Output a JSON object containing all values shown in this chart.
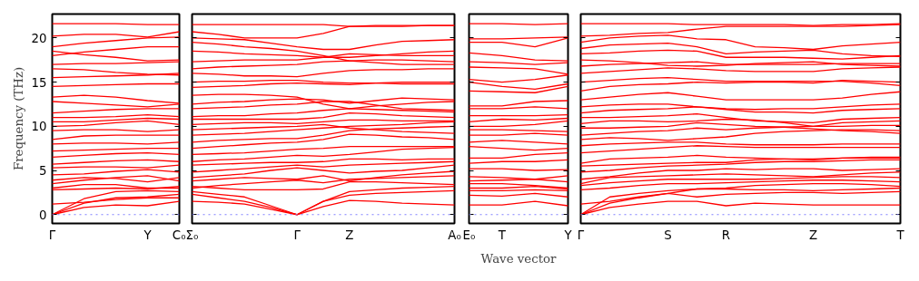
{
  "chart_data": [
    {
      "type": "line",
      "ylabel": "Frequency (THz)",
      "grid": false,
      "ylim": [
        -1,
        22.7
      ],
      "yticks": [
        0,
        5,
        10,
        15,
        20
      ],
      "categories": [
        "Γ",
        null,
        null,
        "Y",
        "C₀"
      ],
      "ref_lines": [
        {
          "axis": "y",
          "value": 0,
          "color": "#8080ff",
          "line_style": "dotted"
        }
      ],
      "series": [
        {
          "color": "#ff0000",
          "values": [
            0,
            0.8,
            1.1,
            1.0,
            1.5
          ]
        },
        {
          "color": "#ff0000",
          "values": [
            0,
            1.3,
            1.9,
            2.0,
            2.3
          ]
        },
        {
          "color": "#ff0000",
          "values": [
            0,
            1.8,
            2.6,
            2.7,
            2.6
          ]
        },
        {
          "color": "#ff0000",
          "values": [
            1.2,
            1.4,
            1.7,
            1.9,
            1.9
          ]
        },
        {
          "color": "#ff0000",
          "values": [
            2.8,
            2.9,
            3.0,
            2.9,
            3.2
          ]
        },
        {
          "color": "#ff0000",
          "values": [
            3.0,
            3.4,
            3.4,
            3.0,
            3.0
          ]
        },
        {
          "color": "#ff0000",
          "values": [
            3.5,
            3.9,
            4.2,
            4.4,
            3.8
          ]
        },
        {
          "color": "#ff0000",
          "values": [
            3.9,
            4.2,
            4.1,
            3.7,
            4.2
          ]
        },
        {
          "color": "#ff0000",
          "values": [
            4.5,
            4.6,
            4.9,
            5.1,
            4.8
          ]
        },
        {
          "color": "#ff0000",
          "values": [
            5.3,
            5.4,
            5.4,
            5.3,
            5.6
          ]
        },
        {
          "color": "#ff0000",
          "values": [
            5.7,
            5.9,
            6.1,
            6.2,
            6.0
          ]
        },
        {
          "color": "#ff0000",
          "values": [
            6.5,
            6.7,
            6.9,
            7.0,
            6.8
          ]
        },
        {
          "color": "#ff0000",
          "values": [
            7.2,
            7.3,
            7.4,
            7.5,
            7.5
          ]
        },
        {
          "color": "#ff0000",
          "values": [
            8.0,
            8.1,
            8.1,
            8.0,
            8.2
          ]
        },
        {
          "color": "#ff0000",
          "values": [
            8.5,
            8.9,
            9.0,
            9.0,
            9.0
          ]
        },
        {
          "color": "#ff0000",
          "values": [
            9.5,
            9.6,
            9.6,
            9.4,
            9.6
          ]
        },
        {
          "color": "#ff0000",
          "values": [
            10.0,
            10.1,
            10.4,
            10.6,
            10.2
          ]
        },
        {
          "color": "#ff0000",
          "values": [
            10.5,
            10.5,
            10.7,
            10.9,
            10.8
          ]
        },
        {
          "color": "#ff0000",
          "values": [
            11.0,
            11.0,
            11.1,
            11.3,
            11.1
          ]
        },
        {
          "color": "#ff0000",
          "values": [
            11.5,
            11.7,
            11.9,
            12.0,
            12.0
          ]
        },
        {
          "color": "#ff0000",
          "values": [
            12.8,
            12.6,
            12.4,
            12.2,
            12.5
          ]
        },
        {
          "color": "#ff0000",
          "values": [
            13.3,
            13.5,
            13.3,
            12.9,
            12.6
          ]
        },
        {
          "color": "#ff0000",
          "values": [
            14.5,
            14.6,
            14.7,
            14.8,
            14.8
          ]
        },
        {
          "color": "#ff0000",
          "values": [
            15.5,
            15.6,
            15.7,
            15.8,
            16.0
          ]
        },
        {
          "color": "#ff0000",
          "values": [
            16.5,
            16.4,
            16.1,
            15.9,
            15.8
          ]
        },
        {
          "color": "#ff0000",
          "values": [
            17.0,
            17.1,
            17.1,
            17.2,
            17.3
          ]
        },
        {
          "color": "#ff0000",
          "values": [
            18.5,
            18.1,
            17.8,
            17.4,
            17.5
          ]
        },
        {
          "color": "#ff0000",
          "values": [
            18.0,
            18.4,
            18.7,
            19.0,
            19.0
          ]
        },
        {
          "color": "#ff0000",
          "values": [
            19.0,
            19.4,
            19.7,
            20.0,
            20.1
          ]
        },
        {
          "color": "#ff0000",
          "values": [
            20.2,
            20.4,
            20.4,
            20.1,
            20.7
          ]
        },
        {
          "color": "#ff0000",
          "values": [
            21.6,
            21.6,
            21.6,
            21.5,
            21.5
          ]
        }
      ]
    },
    {
      "type": "line",
      "tick_labels": "x",
      "grid": false,
      "ylim": [
        -1,
        22.7
      ],
      "yticks": [
        0,
        5,
        10,
        15,
        20
      ],
      "categories": [
        "Σ₀",
        null,
        null,
        null,
        "Γ",
        null,
        "Z",
        null,
        null,
        null,
        "A₀"
      ],
      "ref_lines": [
        {
          "axis": "y",
          "value": 0,
          "color": "#8080ff",
          "line_style": "dotted"
        }
      ],
      "series": [
        {
          "color": "#ff0000",
          "values": [
            1.5,
            1.4,
            1.2,
            0.6,
            0,
            0.9,
            1.6,
            1.5,
            1.3,
            1.2,
            1.1
          ]
        },
        {
          "color": "#ff0000",
          "values": [
            2.3,
            1.9,
            1.5,
            0.8,
            0,
            1.5,
            2.2,
            2.4,
            2.5,
            2.6,
            2.7
          ]
        },
        {
          "color": "#ff0000",
          "values": [
            2.6,
            2.3,
            2.0,
            1.0,
            0,
            1.5,
            2.6,
            2.8,
            3.0,
            3.1,
            3.2
          ]
        },
        {
          "color": "#ff0000",
          "values": [
            3.2,
            3.0,
            2.8,
            2.8,
            2.8,
            2.9,
            3.7,
            3.7,
            3.6,
            3.5,
            3.4
          ]
        },
        {
          "color": "#ff0000",
          "values": [
            3.0,
            3.3,
            3.5,
            3.7,
            3.9,
            3.6,
            4.0,
            4.1,
            4.2,
            4.3,
            4.4
          ]
        },
        {
          "color": "#ff0000",
          "values": [
            3.8,
            4.0,
            4.2,
            4.1,
            4.0,
            4.4,
            3.8,
            4.2,
            4.5,
            4.7,
            4.9
          ]
        },
        {
          "color": "#ff0000",
          "values": [
            4.2,
            4.4,
            4.6,
            5.0,
            5.3,
            5.0,
            4.7,
            4.9,
            5.0,
            5.3,
            5.6
          ]
        },
        {
          "color": "#ff0000",
          "values": [
            4.8,
            5.0,
            5.2,
            5.4,
            5.6,
            5.4,
            5.6,
            5.7,
            5.8,
            5.9,
            6.0
          ]
        },
        {
          "color": "#ff0000",
          "values": [
            5.6,
            5.7,
            5.8,
            5.9,
            5.9,
            6.0,
            6.3,
            6.3,
            6.2,
            6.3,
            6.3
          ]
        },
        {
          "color": "#ff0000",
          "values": [
            6.0,
            6.2,
            6.3,
            6.5,
            6.7,
            6.6,
            6.8,
            7.1,
            7.4,
            7.5,
            7.6
          ]
        },
        {
          "color": "#ff0000",
          "values": [
            6.8,
            6.9,
            7.0,
            7.2,
            7.4,
            7.5,
            7.7,
            7.7,
            7.7,
            7.7,
            7.7
          ]
        },
        {
          "color": "#ff0000",
          "values": [
            7.5,
            7.7,
            7.9,
            8.1,
            8.2,
            8.5,
            9.1,
            9.0,
            8.8,
            8.7,
            8.5
          ]
        },
        {
          "color": "#ff0000",
          "values": [
            8.2,
            8.4,
            8.5,
            8.6,
            8.6,
            9.0,
            9.5,
            9.7,
            9.8,
            9.9,
            10.0
          ]
        },
        {
          "color": "#ff0000",
          "values": [
            9.0,
            9.1,
            9.2,
            9.4,
            9.6,
            9.8,
            10.0,
            10.1,
            10.2,
            10.4,
            10.5
          ]
        },
        {
          "color": "#ff0000",
          "values": [
            9.6,
            9.7,
            9.8,
            9.9,
            10.0,
            10.2,
            9.8,
            9.6,
            9.4,
            9.3,
            9.2
          ]
        },
        {
          "color": "#ff0000",
          "values": [
            10.2,
            10.3,
            10.4,
            10.4,
            10.3,
            10.5,
            10.7,
            10.7,
            10.6,
            10.6,
            10.6
          ]
        },
        {
          "color": "#ff0000",
          "values": [
            10.8,
            10.8,
            10.8,
            10.8,
            10.8,
            11.0,
            11.5,
            11.4,
            11.2,
            11.1,
            11.0
          ]
        },
        {
          "color": "#ff0000",
          "values": [
            11.1,
            11.2,
            11.2,
            11.4,
            11.5,
            11.8,
            12.0,
            11.9,
            11.8,
            11.7,
            11.6
          ]
        },
        {
          "color": "#ff0000",
          "values": [
            12.0,
            12.1,
            12.2,
            12.4,
            12.5,
            12.8,
            12.8,
            12.4,
            12.0,
            11.9,
            11.8
          ]
        },
        {
          "color": "#ff0000",
          "values": [
            12.5,
            12.7,
            12.8,
            13.0,
            13.1,
            13.0,
            12.6,
            12.9,
            13.2,
            13.1,
            13.0
          ]
        },
        {
          "color": "#ff0000",
          "values": [
            13.5,
            13.6,
            13.6,
            13.5,
            13.3,
            12.5,
            12.0,
            12.3,
            12.5,
            12.7,
            12.8
          ]
        },
        {
          "color": "#ff0000",
          "values": [
            14.4,
            14.5,
            14.6,
            14.8,
            14.9,
            14.8,
            14.7,
            14.9,
            15.0,
            15.0,
            15.0
          ]
        },
        {
          "color": "#ff0000",
          "values": [
            15.0,
            15.1,
            15.1,
            15.2,
            15.2,
            15.0,
            14.9,
            14.9,
            14.8,
            14.8,
            14.8
          ]
        },
        {
          "color": "#ff0000",
          "values": [
            16.0,
            15.9,
            15.7,
            15.7,
            15.6,
            16.0,
            16.3,
            16.4,
            16.4,
            16.5,
            16.5
          ]
        },
        {
          "color": "#ff0000",
          "values": [
            16.5,
            16.7,
            16.8,
            16.9,
            17.0,
            17.3,
            17.4,
            17.2,
            17.0,
            17.0,
            17.0
          ]
        },
        {
          "color": "#ff0000",
          "values": [
            17.3,
            17.4,
            17.5,
            17.5,
            17.5,
            17.8,
            18.2,
            18.1,
            18.0,
            18.0,
            18.0
          ]
        },
        {
          "color": "#ff0000",
          "values": [
            18.5,
            18.4,
            18.2,
            18.1,
            18.0,
            17.8,
            17.8,
            18.0,
            18.2,
            18.4,
            18.5
          ]
        },
        {
          "color": "#ff0000",
          "values": [
            19.5,
            19.3,
            19.0,
            18.8,
            18.5,
            18.0,
            17.4,
            17.5,
            17.5,
            17.4,
            17.3
          ]
        },
        {
          "color": "#ff0000",
          "values": [
            20.0,
            19.9,
            19.8,
            19.4,
            19.0,
            18.7,
            18.7,
            19.2,
            19.6,
            19.7,
            19.8
          ]
        },
        {
          "color": "#ff0000",
          "values": [
            20.7,
            20.4,
            20.0,
            20.0,
            20.0,
            20.5,
            21.3,
            21.3,
            21.3,
            21.4,
            21.4
          ]
        },
        {
          "color": "#ff0000",
          "values": [
            21.5,
            21.5,
            21.5,
            21.5,
            21.5,
            21.5,
            21.3,
            21.4,
            21.4,
            21.4,
            21.4
          ]
        }
      ]
    },
    {
      "type": "line",
      "tick_labels": "x",
      "xlabel": "Wave vector",
      "grid": false,
      "ylim": [
        -1,
        22.7
      ],
      "yticks": [
        0,
        5,
        10,
        15,
        20
      ],
      "categories": [
        "E₀",
        "T",
        null,
        "Y"
      ],
      "ref_lines": [
        {
          "axis": "y",
          "value": 0,
          "color": "#8080ff",
          "line_style": "dotted"
        }
      ],
      "series": [
        {
          "color": "#ff0000",
          "values": [
            1.1,
            1.1,
            1.5,
            1.0
          ]
        },
        {
          "color": "#ff0000",
          "values": [
            2.2,
            2.1,
            2.4,
            2.0
          ]
        },
        {
          "color": "#ff0000",
          "values": [
            2.7,
            2.7,
            2.8,
            2.7
          ]
        },
        {
          "color": "#ff0000",
          "values": [
            3.0,
            3.0,
            3.2,
            2.9
          ]
        },
        {
          "color": "#ff0000",
          "values": [
            3.5,
            3.5,
            3.3,
            3.0
          ]
        },
        {
          "color": "#ff0000",
          "values": [
            3.8,
            3.9,
            4.0,
            4.4
          ]
        },
        {
          "color": "#ff0000",
          "values": [
            4.3,
            4.2,
            4.0,
            3.7
          ]
        },
        {
          "color": "#ff0000",
          "values": [
            5.2,
            5.2,
            5.0,
            5.1
          ]
        },
        {
          "color": "#ff0000",
          "values": [
            5.8,
            6.0,
            6.0,
            6.2
          ]
        },
        {
          "color": "#ff0000",
          "values": [
            6.4,
            6.4,
            6.8,
            7.0
          ]
        },
        {
          "color": "#ff0000",
          "values": [
            7.7,
            7.5,
            7.3,
            7.5
          ]
        },
        {
          "color": "#ff0000",
          "values": [
            8.2,
            8.4,
            8.2,
            8.0
          ]
        },
        {
          "color": "#ff0000",
          "values": [
            9.0,
            9.0,
            9.2,
            9.0
          ]
        },
        {
          "color": "#ff0000",
          "values": [
            9.6,
            9.6,
            9.5,
            9.4
          ]
        },
        {
          "color": "#ff0000",
          "values": [
            10.0,
            10.0,
            10.2,
            10.6
          ]
        },
        {
          "color": "#ff0000",
          "values": [
            10.5,
            10.8,
            10.7,
            10.9
          ]
        },
        {
          "color": "#ff0000",
          "values": [
            11.2,
            11.2,
            11.2,
            11.3
          ]
        },
        {
          "color": "#ff0000",
          "values": [
            12.0,
            12.0,
            12.2,
            12.0
          ]
        },
        {
          "color": "#ff0000",
          "values": [
            12.3,
            12.3,
            12.8,
            12.9
          ]
        },
        {
          "color": "#ff0000",
          "values": [
            14.0,
            13.9,
            13.8,
            14.5
          ]
        },
        {
          "color": "#ff0000",
          "values": [
            15.0,
            14.5,
            14.2,
            14.8
          ]
        },
        {
          "color": "#ff0000",
          "values": [
            15.3,
            15.0,
            15.3,
            15.8
          ]
        },
        {
          "color": "#ff0000",
          "values": [
            16.7,
            16.6,
            16.5,
            15.9
          ]
        },
        {
          "color": "#ff0000",
          "values": [
            17.3,
            17.2,
            17.0,
            17.2
          ]
        },
        {
          "color": "#ff0000",
          "values": [
            18.3,
            18.0,
            17.5,
            17.4
          ]
        },
        {
          "color": "#ff0000",
          "values": [
            19.5,
            19.5,
            19.0,
            20.0
          ]
        },
        {
          "color": "#ff0000",
          "values": [
            19.9,
            19.9,
            20.0,
            20.1
          ]
        },
        {
          "color": "#ff0000",
          "values": [
            21.6,
            21.6,
            21.5,
            21.6
          ]
        }
      ]
    },
    {
      "type": "line",
      "tick_labels": "x",
      "grid": false,
      "ylim": [
        -1,
        22.7
      ],
      "yticks": [
        0,
        5,
        10,
        15,
        20
      ],
      "categories": [
        "Γ",
        null,
        null,
        "S",
        null,
        "R",
        null,
        null,
        "Z",
        null,
        null,
        "T"
      ],
      "ref_lines": [
        {
          "axis": "y",
          "value": 0,
          "color": "#8080ff",
          "line_style": "dotted"
        }
      ],
      "series": [
        {
          "color": "#ff0000",
          "values": [
            0,
            0.8,
            1.2,
            1.5,
            1.5,
            1.0,
            1.3,
            1.2,
            1.1,
            1.1,
            1.1,
            1.1
          ]
        },
        {
          "color": "#ff0000",
          "values": [
            0,
            1.3,
            1.9,
            2.4,
            2.0,
            2.3,
            2.4,
            2.5,
            2.5,
            2.4,
            2.5,
            2.6
          ]
        },
        {
          "color": "#ff0000",
          "values": [
            0,
            2.0,
            2.4,
            2.7,
            2.9,
            2.9,
            2.8,
            2.8,
            2.7,
            2.8,
            2.9,
            3.0
          ]
        },
        {
          "color": "#ff0000",
          "values": [
            1.2,
            1.5,
            2.0,
            2.4,
            2.9,
            3.0,
            3.3,
            3.4,
            3.5,
            3.5,
            3.4,
            3.2
          ]
        },
        {
          "color": "#ff0000",
          "values": [
            2.8,
            3.0,
            3.3,
            3.5,
            3.5,
            3.6,
            3.7,
            3.8,
            3.9,
            3.9,
            3.8,
            3.7
          ]
        },
        {
          "color": "#ff0000",
          "values": [
            3.3,
            3.6,
            3.8,
            4.0,
            4.0,
            4.0,
            4.0,
            4.1,
            4.2,
            4.3,
            4.3,
            4.2
          ]
        },
        {
          "color": "#ff0000",
          "values": [
            3.5,
            4.2,
            4.3,
            4.4,
            4.5,
            4.6,
            4.5,
            4.4,
            4.3,
            4.5,
            4.7,
            4.8
          ]
        },
        {
          "color": "#ff0000",
          "values": [
            4.0,
            4.3,
            4.7,
            5.0,
            5.0,
            5.2,
            5.1,
            5.2,
            5.2,
            5.0,
            5.1,
            5.2
          ]
        },
        {
          "color": "#ff0000",
          "values": [
            4.8,
            5.0,
            5.3,
            5.5,
            5.6,
            5.7,
            5.9,
            6.0,
            6.0,
            6.1,
            6.2,
            6.2
          ]
        },
        {
          "color": "#ff0000",
          "values": [
            5.5,
            5.6,
            5.7,
            5.8,
            5.9,
            5.9,
            6.2,
            6.3,
            6.3,
            6.4,
            6.4,
            6.4
          ]
        },
        {
          "color": "#ff0000",
          "values": [
            5.8,
            6.3,
            6.4,
            6.5,
            6.7,
            6.5,
            6.4,
            6.3,
            6.2,
            6.4,
            6.5,
            6.5
          ]
        },
        {
          "color": "#ff0000",
          "values": [
            7.0,
            7.2,
            7.4,
            7.6,
            7.8,
            7.7,
            7.6,
            7.6,
            7.6,
            7.6,
            7.6,
            7.6
          ]
        },
        {
          "color": "#ff0000",
          "values": [
            7.8,
            8.0,
            8.1,
            8.2,
            8.2,
            8.0,
            7.9,
            7.9,
            7.9,
            8.0,
            8.0,
            8.0
          ]
        },
        {
          "color": "#ff0000",
          "values": [
            8.5,
            8.7,
            8.6,
            8.4,
            8.6,
            8.8,
            9.2,
            9.4,
            9.5,
            9.6,
            9.6,
            9.5
          ]
        },
        {
          "color": "#ff0000",
          "values": [
            9.0,
            9.2,
            9.4,
            9.5,
            9.8,
            9.6,
            9.8,
            9.9,
            10.0,
            10.0,
            10.1,
            10.1
          ]
        },
        {
          "color": "#ff0000",
          "values": [
            9.8,
            9.8,
            9.9,
            10.0,
            10.4,
            10.2,
            10.0,
            9.9,
            9.7,
            9.5,
            9.4,
            9.2
          ]
        },
        {
          "color": "#ff0000",
          "values": [
            10.3,
            10.6,
            10.6,
            10.5,
            10.6,
            10.8,
            10.7,
            10.4,
            10.0,
            10.4,
            10.5,
            10.6
          ]
        },
        {
          "color": "#ff0000",
          "values": [
            11.0,
            11.0,
            11.1,
            11.2,
            11.4,
            11.0,
            10.6,
            10.5,
            10.4,
            10.8,
            10.9,
            11.0
          ]
        },
        {
          "color": "#ff0000",
          "values": [
            11.5,
            11.8,
            11.9,
            12.0,
            12.2,
            11.9,
            11.6,
            11.6,
            11.5,
            11.8,
            11.9,
            12.0
          ]
        },
        {
          "color": "#ff0000",
          "values": [
            12.2,
            12.4,
            12.5,
            12.5,
            12.2,
            12.0,
            11.9,
            12.0,
            12.0,
            12.2,
            12.4,
            12.5
          ]
        },
        {
          "color": "#ff0000",
          "values": [
            13.0,
            13.3,
            13.6,
            13.8,
            13.4,
            13.0,
            13.0,
            13.0,
            13.0,
            13.2,
            13.6,
            13.9
          ]
        },
        {
          "color": "#ff0000",
          "values": [
            14.0,
            14.5,
            14.7,
            14.8,
            15.0,
            14.9,
            15.0,
            15.0,
            14.9,
            15.2,
            15.1,
            15.0
          ]
        },
        {
          "color": "#ff0000",
          "values": [
            15.0,
            15.2,
            15.4,
            15.5,
            15.3,
            15.1,
            15.1,
            15.1,
            15.1,
            15.1,
            14.9,
            14.6
          ]
        },
        {
          "color": "#ff0000",
          "values": [
            16.0,
            16.2,
            16.4,
            16.6,
            16.5,
            16.3,
            16.2,
            16.2,
            16.2,
            16.5,
            16.6,
            16.7
          ]
        },
        {
          "color": "#ff0000",
          "values": [
            16.8,
            17.0,
            17.1,
            17.2,
            17.3,
            17.0,
            17.0,
            17.0,
            17.0,
            17.1,
            17.1,
            17.1
          ]
        },
        {
          "color": "#ff0000",
          "values": [
            17.5,
            17.4,
            17.2,
            16.9,
            16.8,
            16.9,
            17.1,
            17.2,
            17.3,
            17.0,
            16.9,
            16.8
          ]
        },
        {
          "color": "#ff0000",
          "values": [
            18.2,
            18.3,
            18.5,
            18.6,
            18.5,
            17.8,
            17.8,
            17.8,
            17.7,
            17.6,
            17.8,
            18.0
          ]
        },
        {
          "color": "#ff0000",
          "values": [
            18.8,
            19.2,
            19.3,
            19.4,
            19.0,
            18.2,
            18.4,
            18.5,
            18.6,
            18.2,
            18.0,
            17.9
          ]
        },
        {
          "color": "#ff0000",
          "values": [
            19.5,
            20.0,
            20.2,
            20.3,
            19.9,
            19.8,
            19.0,
            18.9,
            18.7,
            19.1,
            19.3,
            19.5
          ]
        },
        {
          "color": "#ff0000",
          "values": [
            20.2,
            20.3,
            20.5,
            20.6,
            21.0,
            21.3,
            21.3,
            21.3,
            21.3,
            21.3,
            21.4,
            21.5
          ]
        },
        {
          "color": "#ff0000",
          "values": [
            21.6,
            21.6,
            21.6,
            21.6,
            21.5,
            21.5,
            21.5,
            21.5,
            21.4,
            21.5,
            21.5,
            21.6
          ]
        }
      ]
    }
  ]
}
